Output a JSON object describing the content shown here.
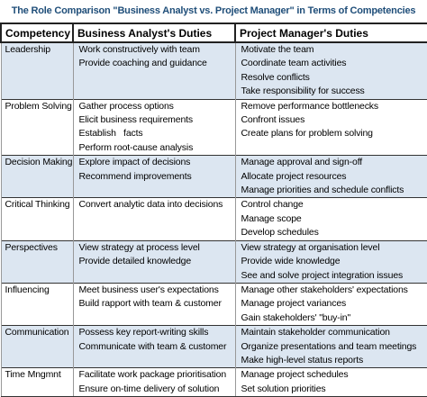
{
  "title": "The Role Comparison \"Business Analyst vs. Project Manager\" in Terms of Competencies",
  "header": [
    "Competency",
    "Business Analyst's Duties",
    "Project Manager's Duties"
  ],
  "rows": [
    {
      "competency": "Leadership",
      "ba": [
        "Work constructively with team",
        "Provide coaching and guidance"
      ],
      "pm": [
        "Motivate the team",
        "Coordinate team activities",
        "Resolve conflicts",
        "Take responsibility for success"
      ]
    },
    {
      "competency": "Problem Solving",
      "ba": [
        "Gather process options",
        "Elicit business requirements",
        "Establish   facts",
        "Perform root-cause analysis"
      ],
      "pm": [
        "Remove performance bottlenecks",
        "Confront issues",
        "Create plans for problem solving"
      ]
    },
    {
      "competency": "Decision Making",
      "ba": [
        "Explore impact of decisions",
        "Recommend improvements"
      ],
      "pm": [
        "Manage approval and sign-off",
        "Allocate project resources",
        "Manage priorities and schedule conflicts"
      ]
    },
    {
      "competency": "Critical Thinking",
      "ba": [
        "Convert analytic data into decisions"
      ],
      "pm": [
        "Control change",
        "Manage scope",
        "Develop schedules"
      ]
    },
    {
      "competency": "Perspectives",
      "ba": [
        "View strategy at process level",
        "Provide detailed knowledge"
      ],
      "pm": [
        "View strategy at organisation level",
        "Provide wide knowledge",
        "See and solve project integration issues"
      ]
    },
    {
      "competency": "Influencing",
      "ba": [
        "Meet business user's expectations",
        "Build rapport with team & customer"
      ],
      "pm": [
        "Manage other stakeholders' expectations",
        "Manage project variances",
        "Gain stakeholders' \"buy-in\""
      ]
    },
    {
      "competency": "Communication",
      "ba": [
        "Possess key report-writing skills",
        "Communicate with team & customer"
      ],
      "pm": [
        "Maintain stakeholder communication",
        "Organize presentations and team meetings",
        "Make high-level status reports"
      ]
    },
    {
      "competency": "Time Mngmnt",
      "ba": [
        "Facilitate work package prioritisation",
        "Ensure on-time delivery of solution"
      ],
      "pm": [
        "Manage project schedules",
        "Set solution priorities"
      ]
    }
  ]
}
